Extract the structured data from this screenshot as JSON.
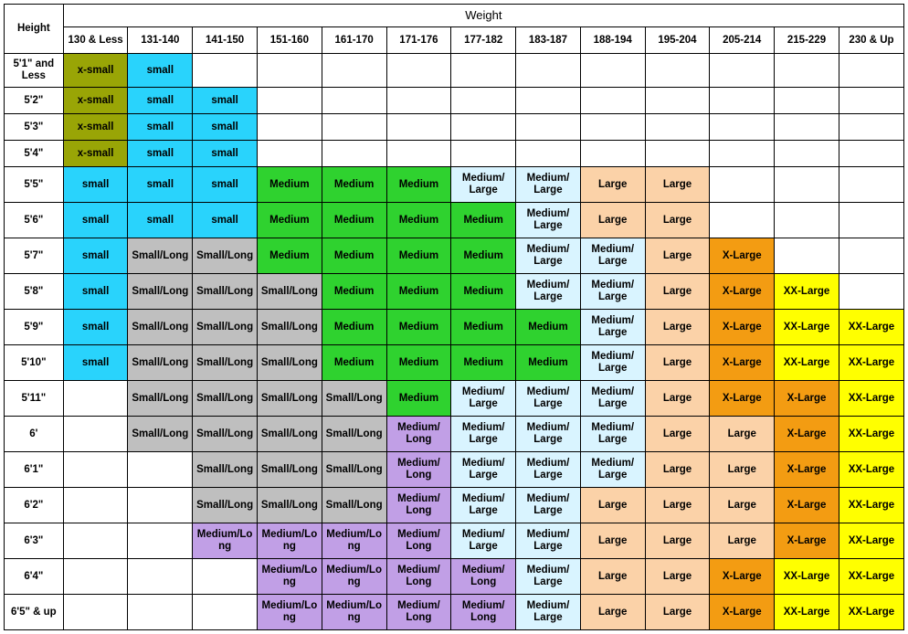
{
  "headers": {
    "main": "Weight",
    "row_label": "Height",
    "weights": [
      "130 & Less",
      "131-140",
      "141-150",
      "151-160",
      "161-170",
      "171-176",
      "177-182",
      "183-187",
      "188-194",
      "195-204",
      "205-214",
      "215-229",
      "230 & Up"
    ]
  },
  "heights": [
    "5'1\" and Less",
    "5'2\"",
    "5'3\"",
    "5'4\"",
    "5'5\"",
    "5'6\"",
    "5'7\"",
    "5'8\"",
    "5'9\"",
    "5'10\"",
    "5'11\"",
    "6'",
    "6'1\"",
    "6'2\"",
    "6'3\"",
    "6'4\"",
    "6'5\" & up"
  ],
  "colors": {
    "xsmall": "#99a506",
    "small": "#29d3fc",
    "smalllong": "#bfbfbf",
    "medium": "#2fd22f",
    "mediumlarge": "#d9f4ff",
    "mediumlong": "#c19fe6",
    "large": "#fbd2a8",
    "xlarge": "#f39c12",
    "xxlarge": "#ffff00",
    "blank": "#ffffff"
  },
  "labels": {
    "xsmall": "x-small",
    "small": "small",
    "smalllong": "Small/Long",
    "medium": "Medium",
    "mediumlarge": "Medium/ Large",
    "mediumlong": "Medium/ Long",
    "mediumlongw": "Medium/Long",
    "mediumlongng": "Medium/Lo ng",
    "large": "Large",
    "xlarge": "X-Large",
    "xxlarge": "XX-Large",
    "blank": ""
  },
  "grid": [
    [
      [
        "xsmall",
        "xsmall"
      ],
      [
        "small",
        "small"
      ],
      [
        "blank",
        "blank"
      ],
      [
        "blank",
        "blank"
      ],
      [
        "blank",
        "blank"
      ],
      [
        "blank",
        "blank"
      ],
      [
        "blank",
        "blank"
      ],
      [
        "blank",
        "blank"
      ],
      [
        "blank",
        "blank"
      ],
      [
        "blank",
        "blank"
      ],
      [
        "blank",
        "blank"
      ],
      [
        "blank",
        "blank"
      ],
      [
        "blank",
        "blank"
      ]
    ],
    [
      [
        "xsmall",
        "xsmall"
      ],
      [
        "small",
        "small"
      ],
      [
        "small",
        "small"
      ],
      [
        "blank",
        "blank"
      ],
      [
        "blank",
        "blank"
      ],
      [
        "blank",
        "blank"
      ],
      [
        "blank",
        "blank"
      ],
      [
        "blank",
        "blank"
      ],
      [
        "blank",
        "blank"
      ],
      [
        "blank",
        "blank"
      ],
      [
        "blank",
        "blank"
      ],
      [
        "blank",
        "blank"
      ],
      [
        "blank",
        "blank"
      ]
    ],
    [
      [
        "xsmall",
        "xsmall"
      ],
      [
        "small",
        "small"
      ],
      [
        "small",
        "small"
      ],
      [
        "blank",
        "blank"
      ],
      [
        "blank",
        "blank"
      ],
      [
        "blank",
        "blank"
      ],
      [
        "blank",
        "blank"
      ],
      [
        "blank",
        "blank"
      ],
      [
        "blank",
        "blank"
      ],
      [
        "blank",
        "blank"
      ],
      [
        "blank",
        "blank"
      ],
      [
        "blank",
        "blank"
      ],
      [
        "blank",
        "blank"
      ]
    ],
    [
      [
        "xsmall",
        "xsmall"
      ],
      [
        "small",
        "small"
      ],
      [
        "small",
        "small"
      ],
      [
        "blank",
        "blank"
      ],
      [
        "blank",
        "blank"
      ],
      [
        "blank",
        "blank"
      ],
      [
        "blank",
        "blank"
      ],
      [
        "blank",
        "blank"
      ],
      [
        "blank",
        "blank"
      ],
      [
        "blank",
        "blank"
      ],
      [
        "blank",
        "blank"
      ],
      [
        "blank",
        "blank"
      ],
      [
        "blank",
        "blank"
      ]
    ],
    [
      [
        "small",
        "small"
      ],
      [
        "small",
        "small"
      ],
      [
        "small",
        "small"
      ],
      [
        "medium",
        "medium"
      ],
      [
        "medium",
        "medium"
      ],
      [
        "medium",
        "medium"
      ],
      [
        "mediumlarge",
        "mediumlarge"
      ],
      [
        "mediumlarge",
        "mediumlarge"
      ],
      [
        "large",
        "large"
      ],
      [
        "large",
        "large"
      ],
      [
        "blank",
        "blank"
      ],
      [
        "blank",
        "blank"
      ],
      [
        "blank",
        "blank"
      ]
    ],
    [
      [
        "small",
        "small"
      ],
      [
        "small",
        "small"
      ],
      [
        "small",
        "small"
      ],
      [
        "medium",
        "medium"
      ],
      [
        "medium",
        "medium"
      ],
      [
        "medium",
        "medium"
      ],
      [
        "medium",
        "medium"
      ],
      [
        "mediumlarge",
        "mediumlarge"
      ],
      [
        "large",
        "large"
      ],
      [
        "large",
        "large"
      ],
      [
        "blank",
        "blank"
      ],
      [
        "blank",
        "blank"
      ],
      [
        "blank",
        "blank"
      ]
    ],
    [
      [
        "small",
        "small"
      ],
      [
        "smalllong",
        "smalllong"
      ],
      [
        "smalllong",
        "smalllong"
      ],
      [
        "medium",
        "medium"
      ],
      [
        "medium",
        "medium"
      ],
      [
        "medium",
        "medium"
      ],
      [
        "medium",
        "medium"
      ],
      [
        "mediumlarge",
        "mediumlarge"
      ],
      [
        "mediumlarge",
        "mediumlarge"
      ],
      [
        "large",
        "large"
      ],
      [
        "xlarge",
        "xlarge"
      ],
      [
        "blank",
        "blank"
      ],
      [
        "blank",
        "blank"
      ]
    ],
    [
      [
        "small",
        "small"
      ],
      [
        "smalllong",
        "smalllong"
      ],
      [
        "smalllong",
        "smalllong"
      ],
      [
        "smalllong",
        "smalllong"
      ],
      [
        "medium",
        "medium"
      ],
      [
        "medium",
        "medium"
      ],
      [
        "medium",
        "medium"
      ],
      [
        "mediumlarge",
        "mediumlarge"
      ],
      [
        "mediumlarge",
        "mediumlarge"
      ],
      [
        "large",
        "large"
      ],
      [
        "xlarge",
        "xlarge"
      ],
      [
        "xxlarge",
        "xxlarge"
      ],
      [
        "blank",
        "blank"
      ]
    ],
    [
      [
        "small",
        "small"
      ],
      [
        "smalllong",
        "smalllong"
      ],
      [
        "smalllong",
        "smalllong"
      ],
      [
        "smalllong",
        "smalllong"
      ],
      [
        "medium",
        "medium"
      ],
      [
        "medium",
        "medium"
      ],
      [
        "medium",
        "medium"
      ],
      [
        "medium",
        "medium"
      ],
      [
        "mediumlarge",
        "mediumlarge"
      ],
      [
        "large",
        "large"
      ],
      [
        "xlarge",
        "xlarge"
      ],
      [
        "xxlarge",
        "xxlarge"
      ],
      [
        "xxlarge",
        "xxlarge"
      ]
    ],
    [
      [
        "small",
        "small"
      ],
      [
        "smalllong",
        "smalllong"
      ],
      [
        "smalllong",
        "smalllong"
      ],
      [
        "smalllong",
        "smalllong"
      ],
      [
        "medium",
        "medium"
      ],
      [
        "medium",
        "medium"
      ],
      [
        "medium",
        "medium"
      ],
      [
        "medium",
        "medium"
      ],
      [
        "mediumlarge",
        "mediumlarge"
      ],
      [
        "large",
        "large"
      ],
      [
        "xlarge",
        "xlarge"
      ],
      [
        "xxlarge",
        "xxlarge"
      ],
      [
        "xxlarge",
        "xxlarge"
      ]
    ],
    [
      [
        "blank",
        "blank"
      ],
      [
        "smalllong",
        "smalllong"
      ],
      [
        "smalllong",
        "smalllong"
      ],
      [
        "smalllong",
        "smalllong"
      ],
      [
        "smalllong",
        "smalllong"
      ],
      [
        "medium",
        "medium"
      ],
      [
        "mediumlarge",
        "mediumlarge"
      ],
      [
        "mediumlarge",
        "mediumlarge"
      ],
      [
        "mediumlarge",
        "mediumlarge"
      ],
      [
        "large",
        "large"
      ],
      [
        "xlarge",
        "xlarge"
      ],
      [
        "xlarge",
        "xlarge"
      ],
      [
        "xxlarge",
        "xxlarge"
      ]
    ],
    [
      [
        "blank",
        "blank"
      ],
      [
        "smalllong",
        "smalllong"
      ],
      [
        "smalllong",
        "smalllong"
      ],
      [
        "smalllong",
        "smalllong"
      ],
      [
        "smalllong",
        "smalllong"
      ],
      [
        "mediumlong",
        "mediumlong"
      ],
      [
        "mediumlarge",
        "mediumlarge"
      ],
      [
        "mediumlarge",
        "mediumlarge"
      ],
      [
        "mediumlarge",
        "mediumlarge"
      ],
      [
        "large",
        "large"
      ],
      [
        "large",
        "large"
      ],
      [
        "xlarge",
        "xlarge"
      ],
      [
        "xxlarge",
        "xxlarge"
      ]
    ],
    [
      [
        "blank",
        "blank"
      ],
      [
        "blank",
        "blank"
      ],
      [
        "smalllong",
        "smalllong"
      ],
      [
        "smalllong",
        "smalllong"
      ],
      [
        "smalllong",
        "smalllong"
      ],
      [
        "mediumlong",
        "mediumlong"
      ],
      [
        "mediumlarge",
        "mediumlarge"
      ],
      [
        "mediumlarge",
        "mediumlarge"
      ],
      [
        "mediumlarge",
        "mediumlarge"
      ],
      [
        "large",
        "large"
      ],
      [
        "large",
        "large"
      ],
      [
        "xlarge",
        "xlarge"
      ],
      [
        "xxlarge",
        "xxlarge"
      ]
    ],
    [
      [
        "blank",
        "blank"
      ],
      [
        "blank",
        "blank"
      ],
      [
        "smalllong",
        "smalllong"
      ],
      [
        "smalllong",
        "smalllong"
      ],
      [
        "smalllong",
        "smalllong"
      ],
      [
        "mediumlong",
        "mediumlong"
      ],
      [
        "mediumlarge",
        "mediumlarge"
      ],
      [
        "mediumlarge",
        "mediumlarge"
      ],
      [
        "large",
        "large"
      ],
      [
        "large",
        "large"
      ],
      [
        "large",
        "large"
      ],
      [
        "xlarge",
        "xlarge"
      ],
      [
        "xxlarge",
        "xxlarge"
      ]
    ],
    [
      [
        "blank",
        "blank"
      ],
      [
        "blank",
        "blank"
      ],
      [
        "mediumlong",
        "mediumlongng"
      ],
      [
        "mediumlong",
        "mediumlongw"
      ],
      [
        "mediumlong",
        "mediumlongw"
      ],
      [
        "mediumlong",
        "mediumlong"
      ],
      [
        "mediumlarge",
        "mediumlarge"
      ],
      [
        "mediumlarge",
        "mediumlarge"
      ],
      [
        "large",
        "large"
      ],
      [
        "large",
        "large"
      ],
      [
        "large",
        "large"
      ],
      [
        "xlarge",
        "xlarge"
      ],
      [
        "xxlarge",
        "xxlarge"
      ]
    ],
    [
      [
        "blank",
        "blank"
      ],
      [
        "blank",
        "blank"
      ],
      [
        "blank",
        "blank"
      ],
      [
        "mediumlong",
        "mediumlongw"
      ],
      [
        "mediumlong",
        "mediumlongw"
      ],
      [
        "mediumlong",
        "mediumlong"
      ],
      [
        "mediumlong",
        "mediumlong"
      ],
      [
        "mediumlarge",
        "mediumlarge"
      ],
      [
        "large",
        "large"
      ],
      [
        "large",
        "large"
      ],
      [
        "xlarge",
        "xlarge"
      ],
      [
        "xxlarge",
        "xxlarge"
      ],
      [
        "xxlarge",
        "xxlarge"
      ]
    ],
    [
      [
        "blank",
        "blank"
      ],
      [
        "blank",
        "blank"
      ],
      [
        "blank",
        "blank"
      ],
      [
        "mediumlong",
        "mediumlongw"
      ],
      [
        "mediumlong",
        "mediumlongw"
      ],
      [
        "mediumlong",
        "mediumlong"
      ],
      [
        "mediumlong",
        "mediumlong"
      ],
      [
        "mediumlarge",
        "mediumlarge"
      ],
      [
        "large",
        "large"
      ],
      [
        "large",
        "large"
      ],
      [
        "xlarge",
        "xlarge"
      ],
      [
        "xxlarge",
        "xxlarge"
      ],
      [
        "xxlarge",
        "xxlarge"
      ]
    ]
  ],
  "row_heights_tall": [
    4,
    5,
    6,
    7,
    8,
    9,
    10,
    11,
    12,
    13,
    14,
    15,
    16
  ]
}
